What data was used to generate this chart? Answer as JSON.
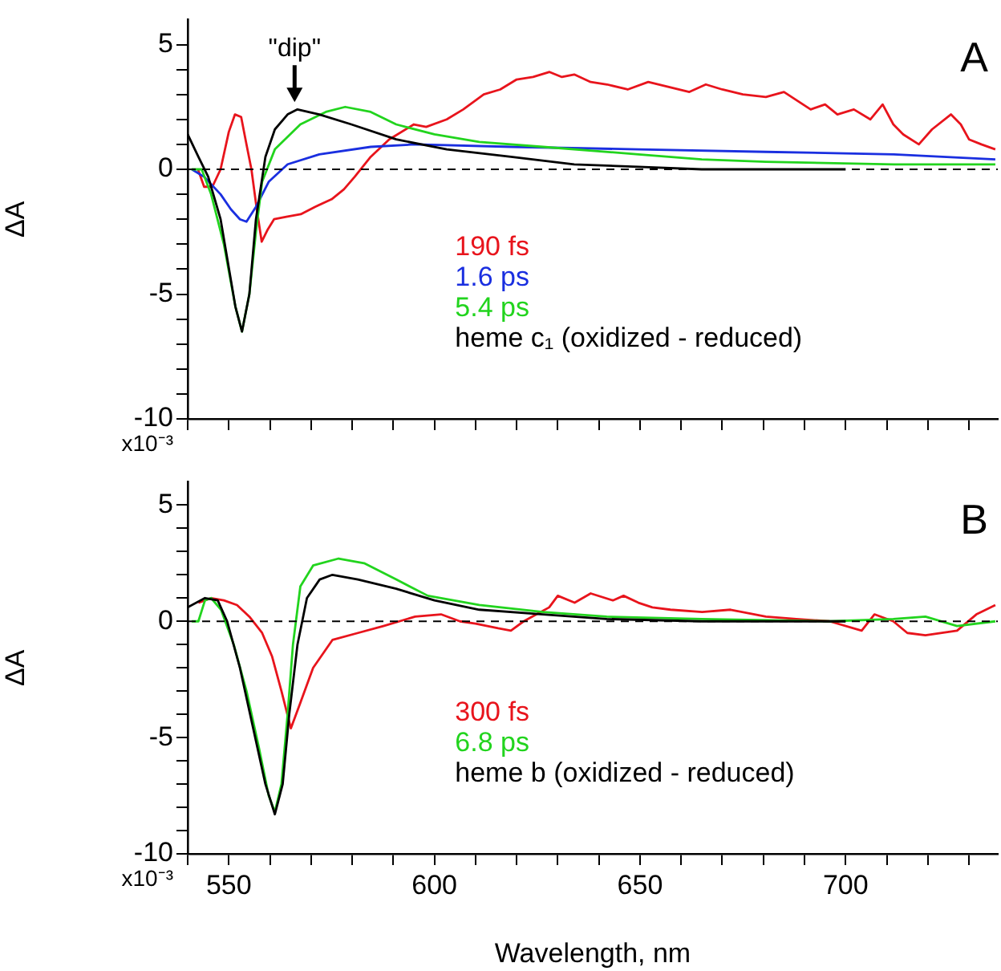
{
  "chart_data": [
    {
      "type": "line",
      "ylabel": "ΔA",
      "xlim": [
        540,
        737
      ],
      "ylim": [
        -10,
        6
      ],
      "tick_labels": "y",
      "legend": "bottom",
      "marker": "none",
      "line_style": "solid",
      "xticks": [
        {
          "value": 540,
          "label": null
        },
        550,
        {
          "value": 560,
          "label": null
        },
        {
          "value": 570,
          "label": null
        },
        {
          "value": 580,
          "label": null
        },
        {
          "value": 590,
          "label": null
        },
        600,
        {
          "value": 610,
          "label": null
        },
        {
          "value": 620,
          "label": null
        },
        {
          "value": 630,
          "label": null
        },
        {
          "value": 640,
          "label": null
        },
        650,
        {
          "value": 660,
          "label": null
        },
        {
          "value": 670,
          "label": null
        },
        {
          "value": 680,
          "label": null
        },
        {
          "value": 690,
          "label": null
        },
        700,
        {
          "value": 710,
          "label": null
        },
        {
          "value": 720,
          "label": null
        },
        {
          "value": 730,
          "label": null
        }
      ],
      "yticks": [
        -10,
        {
          "value": -9,
          "label": null
        },
        {
          "value": -8,
          "label": null
        },
        {
          "value": -7,
          "label": null
        },
        {
          "value": -6,
          "label": null
        },
        -5,
        {
          "value": -4,
          "label": null
        },
        {
          "value": -3,
          "label": null
        },
        {
          "value": -2,
          "label": null
        },
        {
          "value": -1,
          "label": null
        },
        0,
        {
          "value": 1,
          "label": null
        },
        {
          "value": 2,
          "label": null
        },
        {
          "value": 3,
          "label": null
        },
        {
          "value": 4,
          "label": null
        },
        5
      ],
      "ref_lines": [
        {
          "axis": "y",
          "value": 0,
          "label": null,
          "color": "#000000",
          "line_style": "dashed"
        }
      ],
      "annotations": [
        {
          "text": "\"dip\"",
          "x": 566,
          "y": 2.5
        },
        "A",
        "x10⁻³"
      ],
      "series": [
        {
          "name": "190 fs",
          "color": "#e8141c",
          "x": [
            542.5,
            544,
            546,
            548,
            550,
            551.5,
            553,
            554.3,
            555.5,
            556.8,
            558,
            559.5,
            561,
            564,
            567.5,
            571,
            575,
            578,
            580.6,
            584.5,
            589,
            595,
            598,
            603,
            607,
            612,
            616,
            620,
            624,
            628,
            631,
            634,
            638,
            642,
            647,
            652,
            657,
            662,
            666,
            670,
            675,
            680.6,
            685,
            691.5,
            695,
            698,
            702,
            706,
            709,
            711.6,
            714,
            717.8,
            721,
            725.6,
            728,
            730,
            733,
            736.4
          ],
          "values": [
            0,
            -0.7,
            -0.7,
            0,
            1.5,
            2.2,
            2.1,
            1.0,
            0,
            -1.6,
            -2.9,
            -2.4,
            -2.0,
            -1.9,
            -1.8,
            -1.5,
            -1.2,
            -0.8,
            -0.3,
            0.5,
            1.2,
            1.8,
            1.7,
            2.0,
            2.4,
            3.0,
            3.2,
            3.6,
            3.7,
            3.9,
            3.7,
            3.8,
            3.5,
            3.4,
            3.2,
            3.5,
            3.3,
            3.1,
            3.4,
            3.2,
            3.0,
            2.9,
            3.1,
            2.4,
            2.6,
            2.2,
            2.4,
            2.0,
            2.6,
            1.8,
            1.4,
            1.0,
            1.6,
            2.2,
            1.8,
            1.2,
            1.0,
            0.8
          ]
        },
        {
          "name": "1.6 ps",
          "color": "#1a2fe0",
          "x": [
            541,
            544,
            548,
            550.5,
            552.7,
            554.3,
            556.6,
            559.7,
            564.3,
            572,
            584.5,
            595.3,
            618.6,
            649.6,
            680.6,
            711.7,
            736.4
          ],
          "values": [
            0,
            -0.3,
            -1.0,
            -1.6,
            -2.0,
            -2.1,
            -1.5,
            -0.5,
            0.2,
            0.6,
            0.9,
            1.0,
            0.9,
            0.8,
            0.7,
            0.6,
            0.4
          ]
        },
        {
          "name": "5.4 ps",
          "color": "#22d41e",
          "x": [
            541,
            543.4,
            545.7,
            548.8,
            551.6,
            553.2,
            555,
            556.6,
            558.1,
            561.2,
            567.4,
            573.6,
            578.3,
            584.5,
            590.7,
            600,
            610.9,
            626.4,
            649.6,
            665,
            680.6,
            711.7,
            736.4
          ],
          "values": [
            0,
            0,
            -1,
            -3,
            -5.5,
            -6.5,
            -5,
            -2.5,
            -0.5,
            0.8,
            1.8,
            2.3,
            2.5,
            2.3,
            1.8,
            1.4,
            1.1,
            0.9,
            0.6,
            0.4,
            0.3,
            0.2,
            0.2
          ]
        },
        {
          "name": "heme c₁ (oxidized - reduced)",
          "color": "#000000",
          "x": [
            540,
            542.6,
            545,
            548,
            551.6,
            553.2,
            555,
            556.6,
            558.9,
            561.2,
            564.3,
            566.7,
            572,
            579.8,
            590.7,
            603,
            618.6,
            634,
            649.6,
            665,
            700
          ],
          "values": [
            1.4,
            0.5,
            -0.3,
            -2,
            -5.5,
            -6.5,
            -5,
            -2,
            0.5,
            1.6,
            2.2,
            2.4,
            2.2,
            1.8,
            1.2,
            0.8,
            0.5,
            0.2,
            0.1,
            0,
            0
          ]
        }
      ]
    },
    {
      "type": "line",
      "xlabel": "Wavelength, nm",
      "ylabel": "ΔA",
      "xlim": [
        540,
        737
      ],
      "ylim": [
        -10,
        6
      ],
      "legend": "bottom",
      "marker": "none",
      "line_style": "solid",
      "xticks": [
        {
          "value": 540,
          "label": null
        },
        550,
        {
          "value": 560,
          "label": null
        },
        {
          "value": 570,
          "label": null
        },
        {
          "value": 580,
          "label": null
        },
        {
          "value": 590,
          "label": null
        },
        600,
        {
          "value": 610,
          "label": null
        },
        {
          "value": 620,
          "label": null
        },
        {
          "value": 630,
          "label": null
        },
        {
          "value": 640,
          "label": null
        },
        650,
        {
          "value": 660,
          "label": null
        },
        {
          "value": 670,
          "label": null
        },
        {
          "value": 680,
          "label": null
        },
        {
          "value": 690,
          "label": null
        },
        700,
        {
          "value": 710,
          "label": null
        },
        {
          "value": 720,
          "label": null
        },
        {
          "value": 730,
          "label": null
        }
      ],
      "yticks": [
        -10,
        {
          "value": -9,
          "label": null
        },
        {
          "value": -8,
          "label": null
        },
        {
          "value": -7,
          "label": null
        },
        {
          "value": -6,
          "label": null
        },
        -5,
        {
          "value": -4,
          "label": null
        },
        {
          "value": -3,
          "label": null
        },
        {
          "value": -2,
          "label": null
        },
        {
          "value": -1,
          "label": null
        },
        0,
        {
          "value": 1,
          "label": null
        },
        {
          "value": 2,
          "label": null
        },
        {
          "value": 3,
          "label": null
        },
        {
          "value": 4,
          "label": null
        },
        5
      ],
      "ref_lines": [
        {
          "axis": "y",
          "value": 0,
          "label": null,
          "color": "#000000",
          "line_style": "dashed"
        }
      ],
      "annotations": [
        "B",
        "x10⁻³"
      ],
      "series": [
        {
          "name": "300 fs",
          "color": "#e8141c",
          "x": [
            542.6,
            545.7,
            548.8,
            552,
            555,
            558.1,
            560.5,
            562.8,
            565.1,
            567.4,
            570.5,
            575.2,
            581.4,
            587.6,
            595.3,
            601.6,
            606.2,
            610,
            615.5,
            618.6,
            621.7,
            627.9,
            630,
            634.1,
            638,
            643.4,
            646,
            649.6,
            653,
            657.4,
            665.1,
            672,
            680.6,
            688,
            696.1,
            703.9,
            707,
            711.6,
            715,
            719.4,
            727.1,
            731.8,
            736.4
          ],
          "values": [
            0.8,
            1.0,
            0.9,
            0.7,
            0.2,
            -0.5,
            -1.5,
            -3,
            -4.6,
            -3.5,
            -2,
            -0.8,
            -0.5,
            -0.2,
            0.2,
            0.3,
            0,
            -0.1,
            -0.3,
            -0.4,
            0,
            0.6,
            1.1,
            0.8,
            1.2,
            0.9,
            1.1,
            0.8,
            0.6,
            0.5,
            0.4,
            0.5,
            0.2,
            0.1,
            0,
            -0.4,
            0.3,
            0,
            -0.5,
            -0.6,
            -0.4,
            0.3,
            0.7
          ]
        },
        {
          "name": "6.8 ps",
          "color": "#22d41e",
          "x": [
            541,
            542.6,
            544.2,
            545.7,
            548.1,
            551.2,
            554.3,
            557.4,
            559.7,
            561.2,
            562.8,
            564.3,
            565.6,
            567.4,
            570.5,
            576.7,
            582.9,
            590.7,
            598.4,
            610.9,
            626.4,
            641.9,
            665.1,
            696.1,
            711.6,
            719.4,
            727.1,
            736.4
          ],
          "values": [
            0,
            0,
            0.9,
            1.0,
            0.5,
            -1,
            -3,
            -5.5,
            -7.5,
            -8.2,
            -7,
            -4,
            -1,
            1.5,
            2.4,
            2.7,
            2.5,
            1.8,
            1.1,
            0.7,
            0.4,
            0.2,
            0.1,
            0,
            0.1,
            0.2,
            -0.2,
            0
          ]
        },
        {
          "name": "heme b (oxidized - reduced)",
          "color": "#000000",
          "x": [
            540,
            544.2,
            547.3,
            549.6,
            552.7,
            555.8,
            558.9,
            561.2,
            563.1,
            564.7,
            566.7,
            569,
            572.1,
            575.2,
            581.4,
            590.7,
            600,
            610.9,
            626.4,
            641.9,
            665.1,
            700
          ],
          "values": [
            0.6,
            1.0,
            0.9,
            0,
            -2,
            -4.5,
            -7,
            -8.3,
            -7,
            -4,
            -1,
            1,
            1.8,
            2.0,
            1.8,
            1.4,
            0.9,
            0.5,
            0.3,
            0.1,
            0,
            0
          ]
        }
      ]
    }
  ]
}
